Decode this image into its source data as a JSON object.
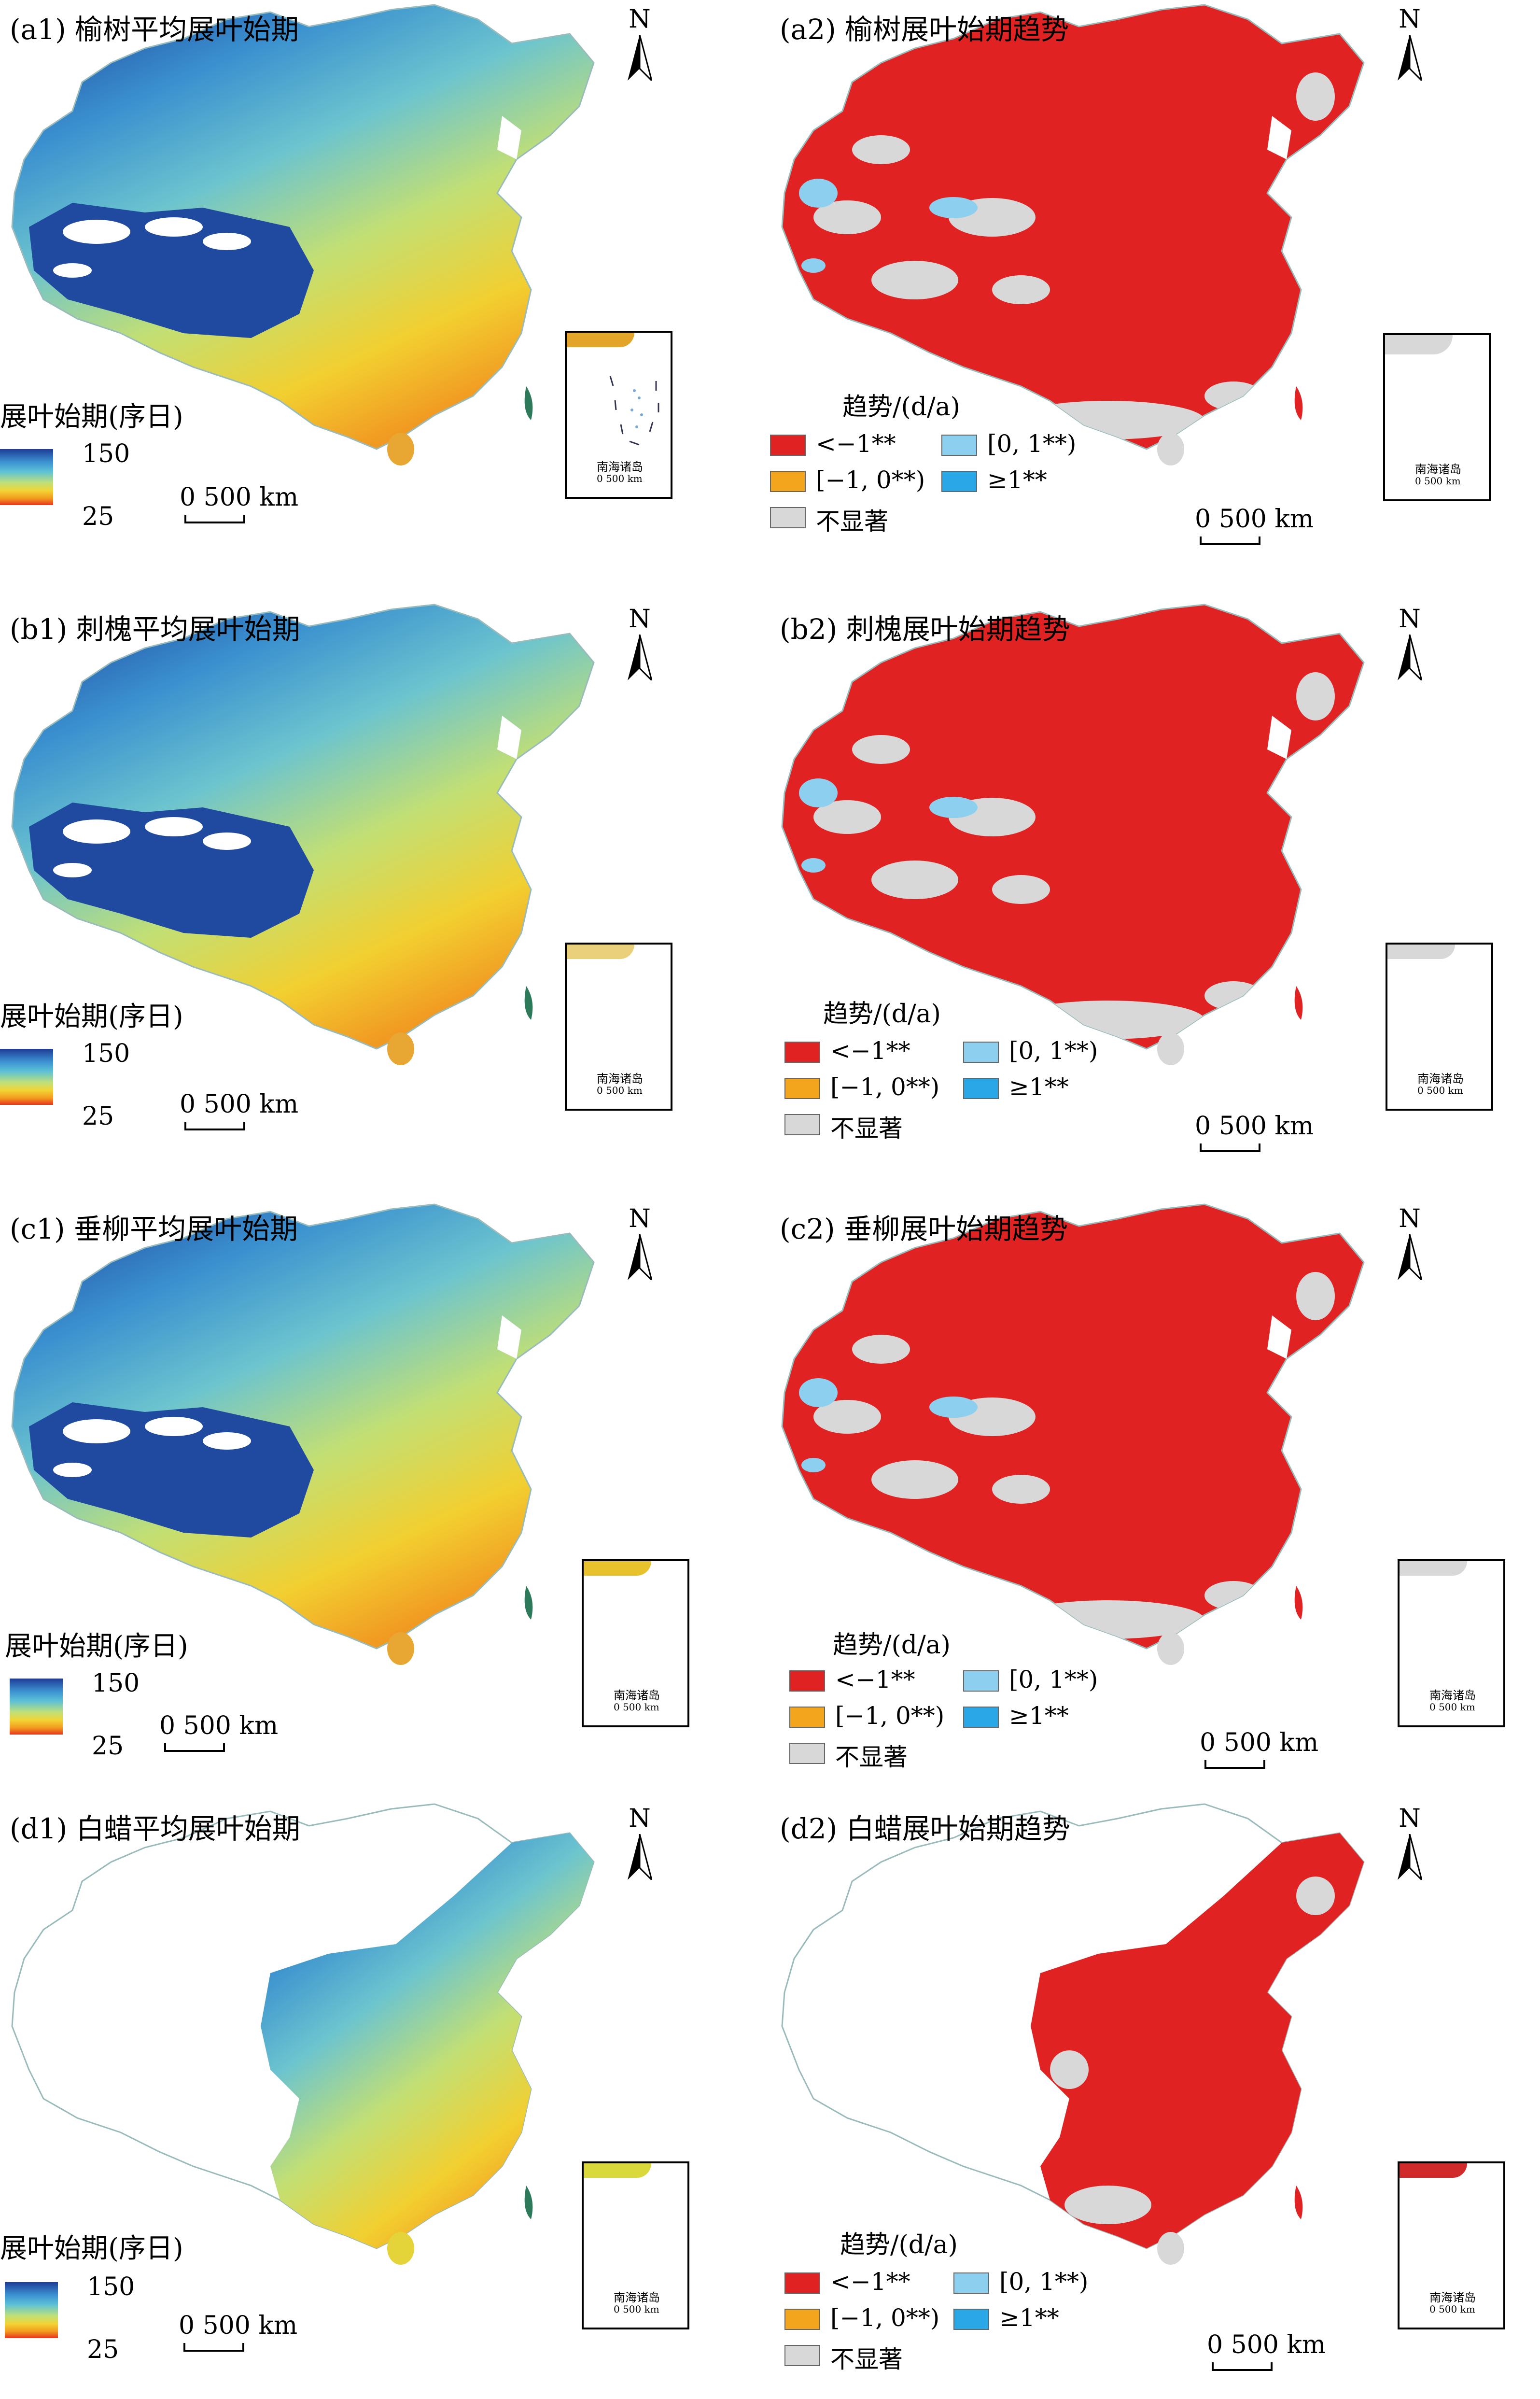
{
  "common": {
    "north_label": "N",
    "scale_label": "0  500 km",
    "inset_label": "南海诸岛",
    "inset_scale": "0  500 km"
  },
  "colorbar": {
    "title": "展叶始期(序日)",
    "max": "150",
    "min": "25"
  },
  "legend": {
    "title": "趋势/(d/a)",
    "items": [
      {
        "label": "<−1**",
        "color": "#e02222"
      },
      {
        "label": "[0, 1**)",
        "color": "#8ccfee"
      },
      {
        "label": "[−1, 0**)",
        "color": "#f3a51e"
      },
      {
        "label": "≥1**",
        "color": "#2aa7e6"
      },
      {
        "label": "不显著",
        "color": "#d8d8d8"
      }
    ]
  },
  "panels": [
    {
      "id": "a1",
      "title": "(a1) 榆树平均展叶始期",
      "kind": "mean",
      "species": "elm",
      "row": 0
    },
    {
      "id": "a2",
      "title": "(a2) 榆树展叶始期趋势",
      "kind": "trend",
      "species": "elm",
      "row": 0
    },
    {
      "id": "b1",
      "title": "(b1) 刺槐平均展叶始期",
      "kind": "mean",
      "species": "locust",
      "row": 1
    },
    {
      "id": "b2",
      "title": "(b2) 刺槐展叶始期趋势",
      "kind": "trend",
      "species": "locust",
      "row": 1
    },
    {
      "id": "c1",
      "title": "(c1) 垂柳平均展叶始期",
      "kind": "mean",
      "species": "willow",
      "row": 2
    },
    {
      "id": "c2",
      "title": "(c2) 垂柳展叶始期趋势",
      "kind": "trend",
      "species": "willow",
      "row": 2
    },
    {
      "id": "d1",
      "title": "(d1) 白蜡平均展叶始期",
      "kind": "mean",
      "species": "ash",
      "row": 3
    },
    {
      "id": "d2",
      "title": "(d2) 白蜡展叶始期趋势",
      "kind": "trend",
      "species": "ash",
      "row": 3
    }
  ]
}
